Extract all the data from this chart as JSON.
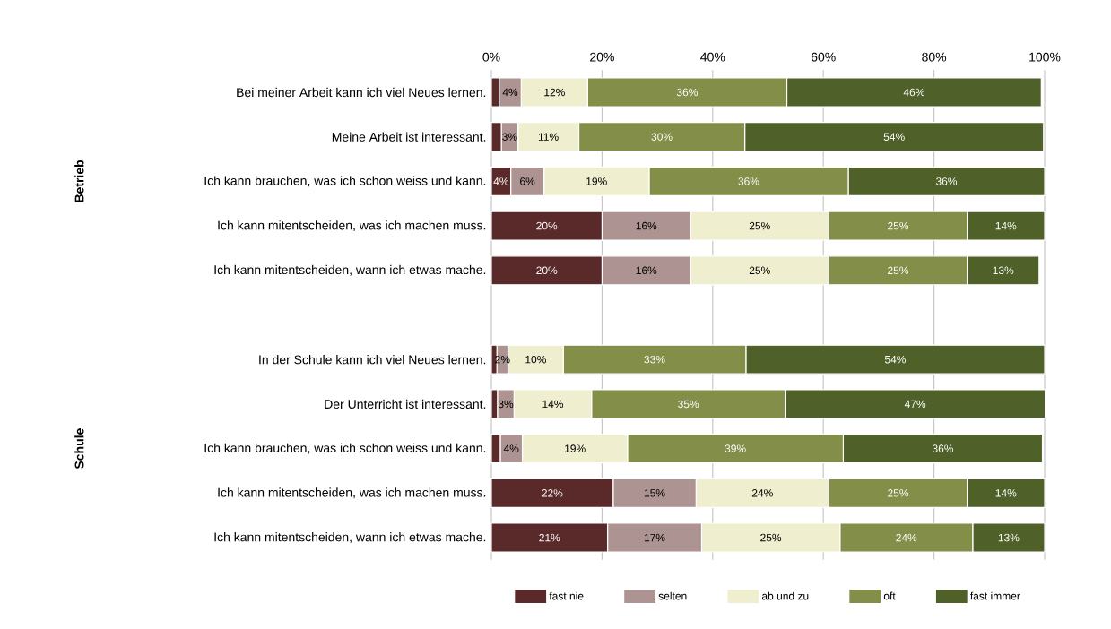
{
  "chart_data": {
    "type": "bar",
    "orientation": "horizontal",
    "stacked": true,
    "categories": [
      "Bei meiner Arbeit kann ich viel Neues lernen.",
      "Meine Arbeit ist interessant.",
      "Ich kann brauchen, was ich schon weiss und kann.",
      "Ich kann mitentscheiden, was ich machen muss.",
      "Ich kann mitentscheiden, wann ich etwas mache.",
      null,
      "In der Schule kann ich viel  Neues lernen.",
      "Der Unterricht ist interessant.",
      "Ich kann brauchen, was ich schon weiss und kann.",
      "Ich kann mitentscheiden, was ich machen muss.",
      "Ich kann mitentscheiden, wann ich etwas mache."
    ],
    "series": [
      {
        "name": "fast nie",
        "color": "#5a2a2b",
        "values": [
          1.4,
          1.8,
          3.5,
          20,
          20,
          null,
          1,
          1.1,
          1.6,
          22,
          21
        ],
        "value_labels": [
          null,
          null,
          "4%",
          "20%",
          "20%",
          null,
          null,
          null,
          null,
          "22%",
          "21%"
        ]
      },
      {
        "name": "selten",
        "color": "#ad9391",
        "values": [
          4,
          3,
          6,
          16,
          16,
          null,
          2,
          3,
          4,
          15,
          17
        ],
        "value_labels": [
          "4%",
          "3%",
          "6%",
          "16%",
          "16%",
          null,
          "2%",
          "3%",
          "4%",
          "15%",
          "17%"
        ]
      },
      {
        "name": "ab und zu",
        "color": "#efefd0",
        "values": [
          12,
          11,
          19,
          25,
          25,
          null,
          10,
          14,
          19,
          24,
          25
        ],
        "value_labels": [
          "12%",
          "11%",
          "19%",
          "25%",
          "25%",
          null,
          "10%",
          "14%",
          "19%",
          "24%",
          "25%"
        ]
      },
      {
        "name": "oft",
        "color": "#838f48",
        "values": [
          36,
          30,
          36,
          25,
          25,
          null,
          33,
          35,
          39,
          25,
          24
        ],
        "value_labels": [
          "36%",
          "30%",
          "36%",
          "25%",
          "25%",
          null,
          "33%",
          "35%",
          "39%",
          "25%",
          "24%"
        ]
      },
      {
        "name": "fast immer",
        "color": "#4f6128",
        "values": [
          46,
          54,
          35.5,
          14,
          13,
          null,
          54,
          47,
          36,
          14,
          13
        ],
        "value_labels": [
          "46%",
          "54%",
          "36%",
          "14%",
          "13%",
          null,
          "54%",
          "47%",
          "36%",
          "14%",
          "13%"
        ]
      }
    ],
    "xlim": [
      0,
      100
    ],
    "xticks": [
      {
        "value": 0,
        "label": "0%"
      },
      {
        "value": 20,
        "label": "20%"
      },
      {
        "value": 40,
        "label": "40%"
      },
      {
        "value": 60,
        "label": "60%"
      },
      {
        "value": 80,
        "label": "80%"
      },
      {
        "value": 100,
        "label": "100%"
      }
    ],
    "grid": "x",
    "legend": "bottom",
    "annotations": [
      "Betrieb",
      "Schule"
    ]
  }
}
